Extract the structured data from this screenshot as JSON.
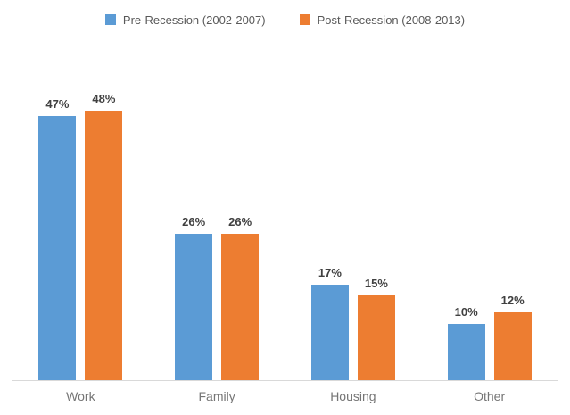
{
  "chart_data": {
    "type": "bar",
    "title": "",
    "categories": [
      "Work",
      "Family",
      "Housing",
      "Other"
    ],
    "series": [
      {
        "name": "Pre-Recession (2002-2007)",
        "color": "#5B9BD5",
        "values": [
          47,
          26,
          17,
          10
        ]
      },
      {
        "name": "Post-Recession (2008-2013)",
        "color": "#ED7D31",
        "values": [
          48,
          26,
          15,
          12
        ]
      }
    ],
    "value_suffix": "%",
    "data_labels_shown": true,
    "ylim": [
      0,
      55
    ],
    "grid": "off",
    "y_axis_shown": false,
    "legend_position": "top-center"
  }
}
